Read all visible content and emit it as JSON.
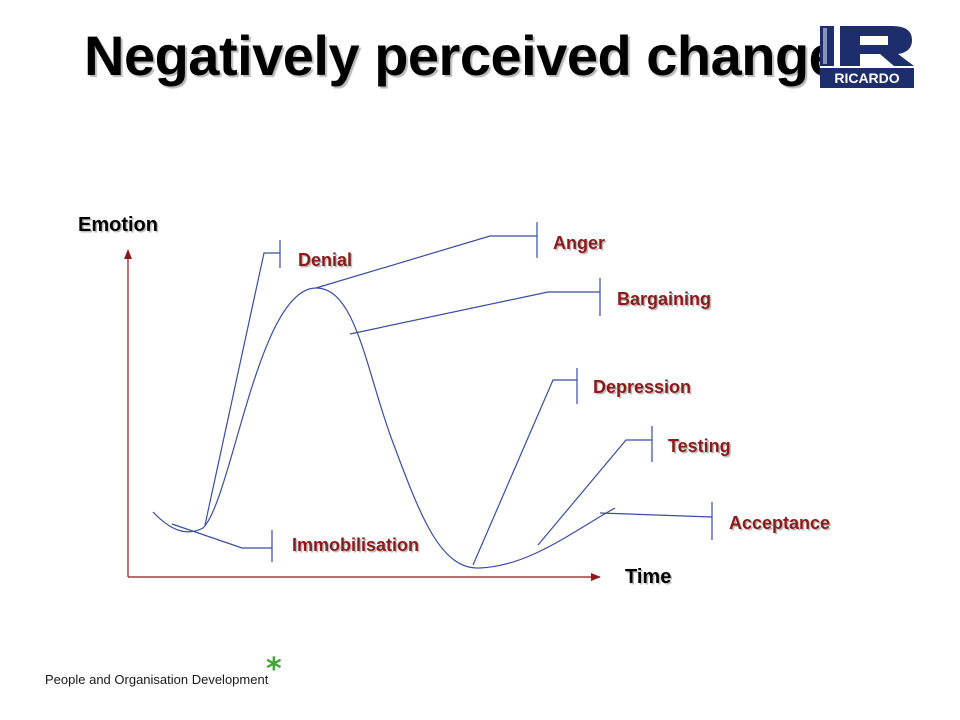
{
  "title": "Negatively perceived change",
  "logo": {
    "text": "RICARDO",
    "colors": {
      "dark": "#1e2d6b",
      "light": "#8a93b8"
    }
  },
  "diagram": {
    "y_axis_label": "Emotion",
    "x_axis_label": "Time",
    "stages": [
      {
        "key": "denial",
        "label": "Denial"
      },
      {
        "key": "anger",
        "label": "Anger"
      },
      {
        "key": "bargaining",
        "label": "Bargaining"
      },
      {
        "key": "depression",
        "label": "Depression"
      },
      {
        "key": "testing",
        "label": "Testing"
      },
      {
        "key": "acceptance",
        "label": "Acceptance"
      },
      {
        "key": "immobilisation",
        "label": "Immobilisation"
      }
    ],
    "colors": {
      "curve": "#3a4da0",
      "axis": "#8b1a1a",
      "stage_label": "#8b1a1a",
      "label_shadow": "#bdbdbd"
    }
  },
  "footer": {
    "text": "People and Organisation Development",
    "star": "*",
    "star_color": "#3fa535"
  }
}
